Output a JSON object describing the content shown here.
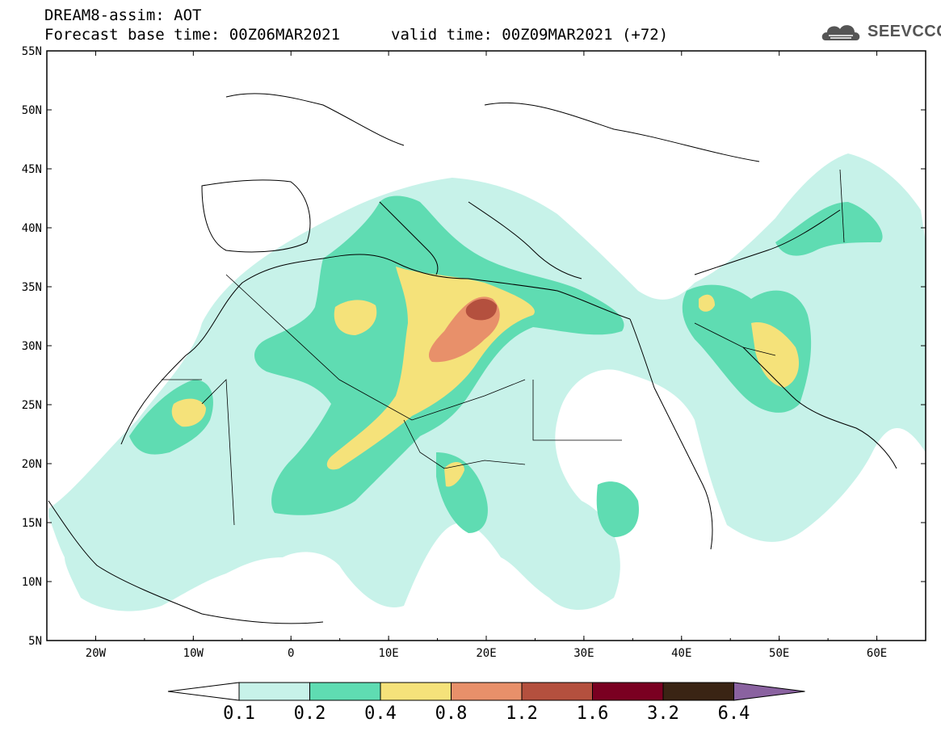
{
  "header": {
    "title": "DREAM8-assim: AOT",
    "base_time": "Forecast base time: 00Z06MAR2021",
    "valid_time": "valid time: 00Z09MAR2021 (+72)",
    "logo_text": "SEEVCCC"
  },
  "map": {
    "lat_labels": [
      "55N",
      "50N",
      "45N",
      "40N",
      "35N",
      "30N",
      "25N",
      "20N",
      "15N",
      "10N",
      "5N"
    ],
    "lon_labels": [
      "20W",
      "10W",
      "0",
      "10E",
      "20E",
      "30E",
      "40E",
      "50E",
      "60E"
    ],
    "lat_range": [
      5,
      55
    ],
    "lon_range": [
      -25,
      65
    ]
  },
  "legend": {
    "levels": [
      "0.1",
      "0.2",
      "0.4",
      "0.8",
      "1.2",
      "1.6",
      "3.2",
      "6.4"
    ],
    "colors": [
      "#ffffff",
      "#c7f2e9",
      "#5fdcb2",
      "#f5e27a",
      "#e8906a",
      "#b4503e",
      "#7a0021",
      "#3a2414",
      "#8a62a0"
    ]
  }
}
